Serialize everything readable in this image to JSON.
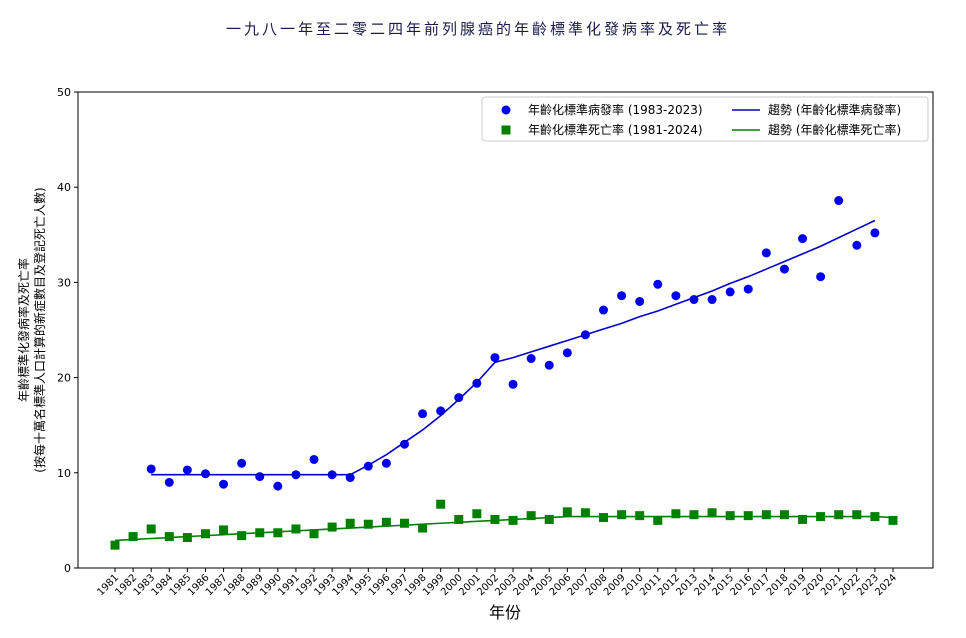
{
  "chart_data": {
    "type": "line",
    "title": "一九八一年至二零二四年前列腺癌的年齡標準化發病率及死亡率",
    "x_label": "年份",
    "y_label": [
      "年齡標準化發病率及死亡率",
      "(按每十萬名標準人口計算的新症數目及登記死亡人數)"
    ],
    "categories": [
      "1981",
      "1982",
      "1983",
      "1984",
      "1985",
      "1986",
      "1987",
      "1988",
      "1989",
      "1990",
      "1991",
      "1992",
      "1993",
      "1994",
      "1995",
      "1996",
      "1997",
      "1998",
      "1999",
      "2000",
      "2001",
      "2002",
      "2003",
      "2004",
      "2005",
      "2006",
      "2007",
      "2008",
      "2009",
      "2010",
      "2011",
      "2012",
      "2013",
      "2014",
      "2015",
      "2016",
      "2017",
      "2018",
      "2019",
      "2020",
      "2021",
      "2022",
      "2023",
      "2024"
    ],
    "ylim": [
      0,
      50
    ],
    "yticks": [
      0,
      10,
      20,
      30,
      40,
      50
    ],
    "grid": false,
    "legend": "upper right",
    "series": [
      {
        "name": "年齡化標準病發率 (1983-2023)",
        "color": "#0000ee",
        "style": "circle",
        "values": [
          null,
          null,
          10.4,
          9.0,
          10.3,
          9.9,
          8.8,
          11.0,
          9.6,
          8.6,
          9.8,
          11.4,
          9.8,
          9.5,
          10.7,
          11.0,
          13.0,
          16.2,
          16.5,
          17.9,
          19.4,
          22.1,
          19.3,
          22.0,
          21.3,
          22.6,
          24.5,
          27.1,
          28.6,
          28.0,
          29.8,
          28.6,
          28.2,
          28.2,
          29.0,
          29.3,
          33.1,
          31.4,
          34.6,
          30.6,
          38.6,
          33.9,
          35.2,
          null
        ]
      },
      {
        "name": "年齡化標準死亡率 (1981-2024)",
        "color": "#008000",
        "style": "square",
        "values": [
          2.4,
          3.3,
          4.1,
          3.3,
          3.2,
          3.6,
          4.0,
          3.4,
          3.7,
          3.7,
          4.1,
          3.6,
          4.3,
          4.7,
          4.6,
          4.8,
          4.7,
          4.2,
          6.7,
          5.1,
          5.7,
          5.1,
          5.0,
          5.5,
          5.1,
          5.9,
          5.8,
          5.3,
          5.6,
          5.5,
          5.0,
          5.7,
          5.6,
          5.8,
          5.5,
          5.5,
          5.6,
          5.6,
          5.1,
          5.4,
          5.6,
          5.6,
          5.4,
          5.0
        ]
      },
      {
        "name": "趨勢 (年齡化標準病發率)",
        "color": "#0000cc",
        "style": "line",
        "values": [
          null,
          null,
          9.8,
          9.8,
          9.8,
          9.8,
          9.8,
          9.8,
          9.8,
          9.8,
          9.8,
          9.8,
          9.8,
          9.8,
          10.8,
          11.9,
          13.2,
          14.5,
          16.0,
          17.7,
          19.5,
          21.6,
          22.1,
          22.7,
          23.3,
          23.9,
          24.5,
          25.1,
          25.7,
          26.4,
          27.0,
          27.7,
          28.4,
          29.1,
          29.9,
          30.6,
          31.4,
          32.2,
          33.0,
          33.8,
          34.7,
          35.6,
          36.5,
          null
        ]
      },
      {
        "name": "趨勢 (年齡化標準死亡率)",
        "color": "#008000",
        "style": "line",
        "values": [
          2.9,
          3.0,
          3.1,
          3.2,
          3.3,
          3.4,
          3.5,
          3.6,
          3.7,
          3.8,
          3.9,
          4.0,
          4.1,
          4.2,
          4.3,
          4.4,
          4.5,
          4.6,
          4.7,
          4.8,
          4.9,
          5.0,
          5.1,
          5.2,
          5.3,
          5.4,
          5.4,
          5.4,
          5.4,
          5.4,
          5.4,
          5.4,
          5.4,
          5.4,
          5.4,
          5.4,
          5.4,
          5.4,
          5.4,
          5.4,
          5.4,
          5.4,
          5.4,
          5.3
        ]
      }
    ]
  }
}
